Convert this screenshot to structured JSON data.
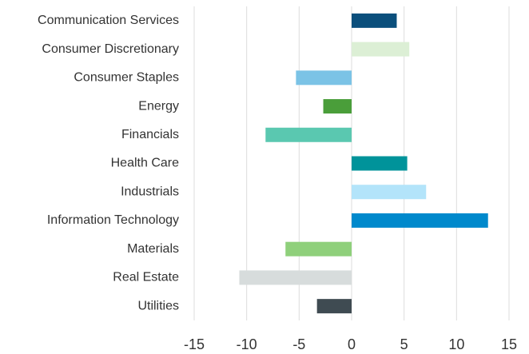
{
  "chart_data": {
    "type": "bar",
    "orientation": "horizontal",
    "categories": [
      "Communication Services",
      "Consumer Discretionary",
      "Consumer Staples",
      "Energy",
      "Financials",
      "Health Care",
      "Industrials",
      "Information Technology",
      "Materials",
      "Real Estate",
      "Utilities"
    ],
    "values": [
      4.3,
      5.5,
      -5.3,
      -2.7,
      -8.2,
      5.3,
      7.1,
      13.0,
      -6.3,
      -10.7,
      -3.3
    ],
    "colors": [
      "#0b4f7c",
      "#dcefd5",
      "#7bc3e6",
      "#4a9e3a",
      "#5ac8b0",
      "#00939a",
      "#b3e4fa",
      "#0089cc",
      "#8fd07b",
      "#d7dcdc",
      "#3f4b52"
    ],
    "xlim": [
      -15,
      15
    ],
    "xticks": [
      -15,
      -10,
      -5,
      0,
      5,
      10,
      15
    ],
    "grid": true
  }
}
